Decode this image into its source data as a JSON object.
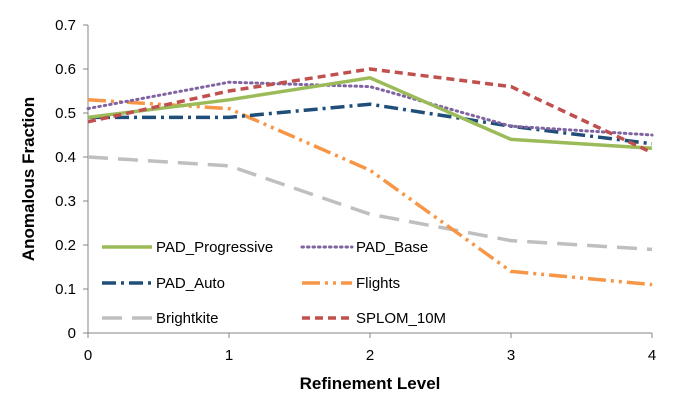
{
  "chart_data": {
    "type": "line",
    "xlabel": "Refinement Level",
    "ylabel": "Anomalous Fraction",
    "x": [
      0,
      1,
      2,
      3,
      4
    ],
    "x_ticks": [
      "0",
      "1",
      "2",
      "3",
      "4"
    ],
    "ylim": [
      0,
      0.7
    ],
    "y_ticks": [
      "0",
      "0.1",
      "0.2",
      "0.3",
      "0.4",
      "0.5",
      "0.6",
      "0.7"
    ],
    "grid": false,
    "legend_placement": "inside-bottom-left",
    "series": [
      {
        "name": "PAD_Progressive",
        "values": [
          0.49,
          0.53,
          0.58,
          0.44,
          0.42
        ],
        "color": "#9BBB59",
        "style": "solid"
      },
      {
        "name": "PAD_Base",
        "values": [
          0.51,
          0.57,
          0.56,
          0.47,
          0.45
        ],
        "color": "#8064A2",
        "style": "dotted"
      },
      {
        "name": "PAD_Auto",
        "values": [
          0.49,
          0.49,
          0.52,
          0.47,
          0.43
        ],
        "color": "#1F4E79",
        "style": "dash-dot"
      },
      {
        "name": "Flights",
        "values": [
          0.53,
          0.51,
          0.37,
          0.14,
          0.11
        ],
        "color": "#F79646",
        "style": "long-dash-dot-dot"
      },
      {
        "name": "Brightkite",
        "values": [
          0.4,
          0.38,
          0.27,
          0.21,
          0.19
        ],
        "color": "#BFBFBF",
        "style": "long-dash"
      },
      {
        "name": "SPLOM_10M",
        "values": [
          0.48,
          0.55,
          0.6,
          0.56,
          0.41
        ],
        "color": "#C0504D",
        "style": "dashed"
      }
    ]
  }
}
